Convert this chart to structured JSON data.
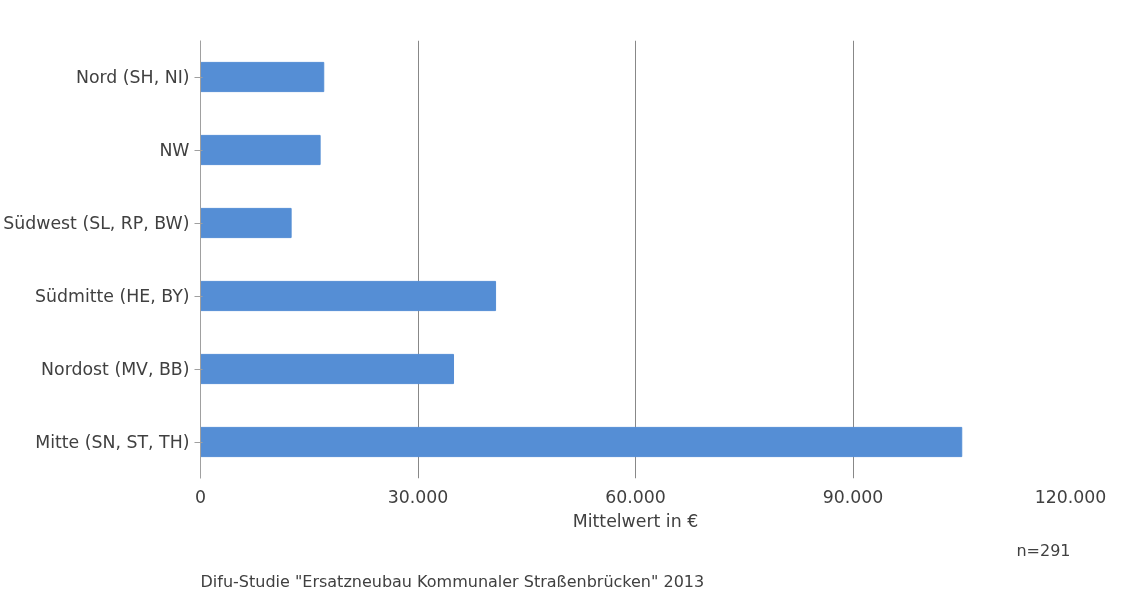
{
  "chart_data": {
    "type": "bar",
    "orientation": "horizontal",
    "categories": [
      "Nord (SH, NI)",
      "NW",
      "Südwest (SL, RP, BW)",
      "Südmitte (HE, BY)",
      "Nordost (MV, BB)",
      "Mitte (SN, ST, TH)"
    ],
    "values": [
      17000,
      16500,
      12500,
      40700,
      34900,
      105000
    ],
    "color": "#558ed5",
    "xlim": [
      0,
      120000
    ],
    "xticks": [
      0,
      {
        "value": 30000,
        "label": "30.000"
      },
      {
        "value": 60000,
        "label": "60.000"
      },
      {
        "value": 90000,
        "label": "90.000"
      },
      {
        "value": 120000,
        "label": "120.000"
      }
    ],
    "xlabel": "Mittelwert in €",
    "grid": "x",
    "annotations": [
      "n=291",
      "Difu-Studie \"Ersatzneubau Kommunaler Straßenbrücken\" 2013"
    ]
  }
}
